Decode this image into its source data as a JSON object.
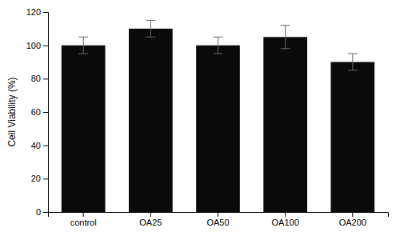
{
  "chart_data": {
    "type": "bar",
    "categories": [
      "control",
      "OA25",
      "OA50",
      "OA100",
      "OA200"
    ],
    "values": [
      100,
      110,
      100,
      105,
      90
    ],
    "errors": [
      5,
      5,
      5,
      7,
      5
    ],
    "color": "#0a0a0a",
    "ylabel": "Cell Viability (%)",
    "ylim": [
      0,
      120
    ],
    "yticks": [
      0,
      20,
      40,
      60,
      80,
      100,
      120
    ],
    "grid": false
  }
}
